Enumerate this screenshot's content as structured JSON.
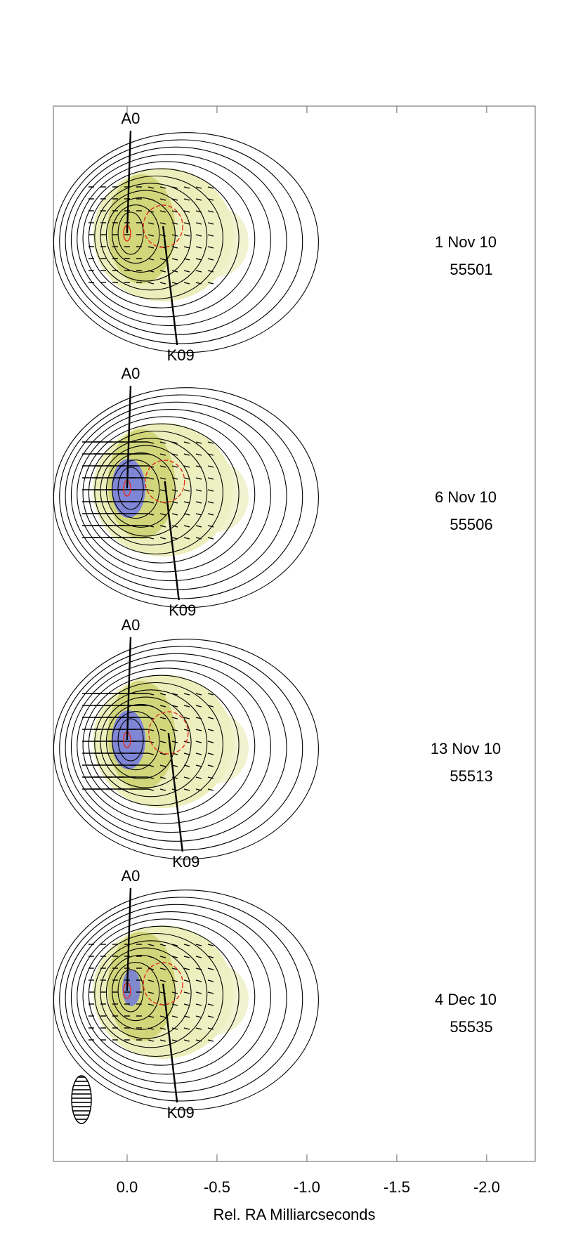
{
  "chart_data": {
    "type": "vlbi-map",
    "x_label": "Rel. RA Milliarcseconds",
    "xlim": [
      0.41,
      -2.27
    ],
    "xticks": [
      {
        "value": 0,
        "label": "0.0"
      },
      -0.5,
      {
        "value": -1,
        "label": "-1.0"
      },
      -1.5,
      {
        "value": -2,
        "label": "-2.0"
      }
    ],
    "panels": [
      {
        "date": "1 Nov 10",
        "mjd": 55501,
        "components": [
          {
            "name": "A0",
            "x": 0.0
          },
          {
            "name": "K09",
            "x": -0.2
          }
        ]
      },
      {
        "date": "6 Nov 10",
        "mjd": 55506,
        "components": [
          {
            "name": "A0",
            "x": 0.0
          },
          {
            "name": "K09",
            "x": -0.21
          }
        ]
      },
      {
        "date": "13 Nov 10",
        "mjd": 55513,
        "components": [
          {
            "name": "A0",
            "x": 0.0
          },
          {
            "name": "K09",
            "x": -0.23
          }
        ]
      },
      {
        "date": "4 Dec 10",
        "mjd": 55535,
        "components": [
          {
            "name": "A0",
            "x": 0.0
          },
          {
            "name": "K09",
            "x": -0.2
          }
        ]
      }
    ]
  }
}
